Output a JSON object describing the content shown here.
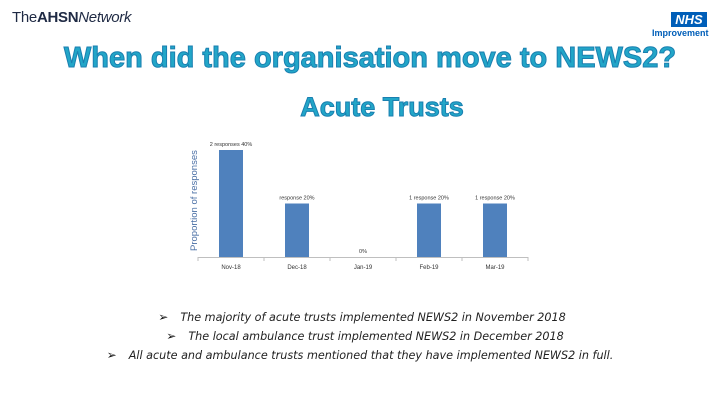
{
  "header": {
    "brand_prefix": "The",
    "brand_bold": "AHSN",
    "brand_suffix": "Network",
    "nhs_logo_text": "NHS",
    "nhs_logo_subtext": "Improvement"
  },
  "title_line1": "When did the organisation move to NEWS2?",
  "title_line2": "Acute Trusts",
  "chart_data": {
    "type": "bar",
    "categories": [
      "Nov-18",
      "Dec-18",
      "Jan-19",
      "Feb-19",
      "Mar-19"
    ],
    "values": [
      40,
      20,
      0,
      20,
      20
    ],
    "data_labels": [
      "2 responses 40%",
      "response 20%",
      "0%",
      "1 response 20%",
      "1 response 20%"
    ],
    "ylabel": "Proportion of responses",
    "xlabel": "",
    "ylim": [
      0,
      40
    ],
    "bar_color": "#4f81bd",
    "grid": false
  },
  "bullets": [
    "The majority of acute trusts implemented NEWS2 in November 2018",
    "The local ambulance trust implemented NEWS2 in December 2018",
    "All acute and ambulance trusts mentioned that they have implemented NEWS2 in full."
  ],
  "bullet_marker": "➢",
  "colors": {
    "title": "#22a6c8",
    "nhs_blue": "#005eb8",
    "bar": "#4f81bd"
  }
}
